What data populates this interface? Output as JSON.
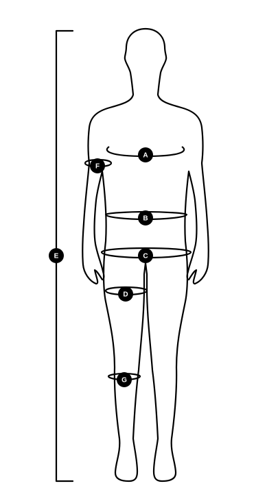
{
  "markers": {
    "a": "A",
    "b": "B",
    "c": "C",
    "d": "D",
    "e": "E",
    "f": "F",
    "g": "G"
  },
  "colors": {
    "line": "#000000",
    "marker_fill": "#000000",
    "marker_text": "#ffffff",
    "background": "#ffffff"
  }
}
